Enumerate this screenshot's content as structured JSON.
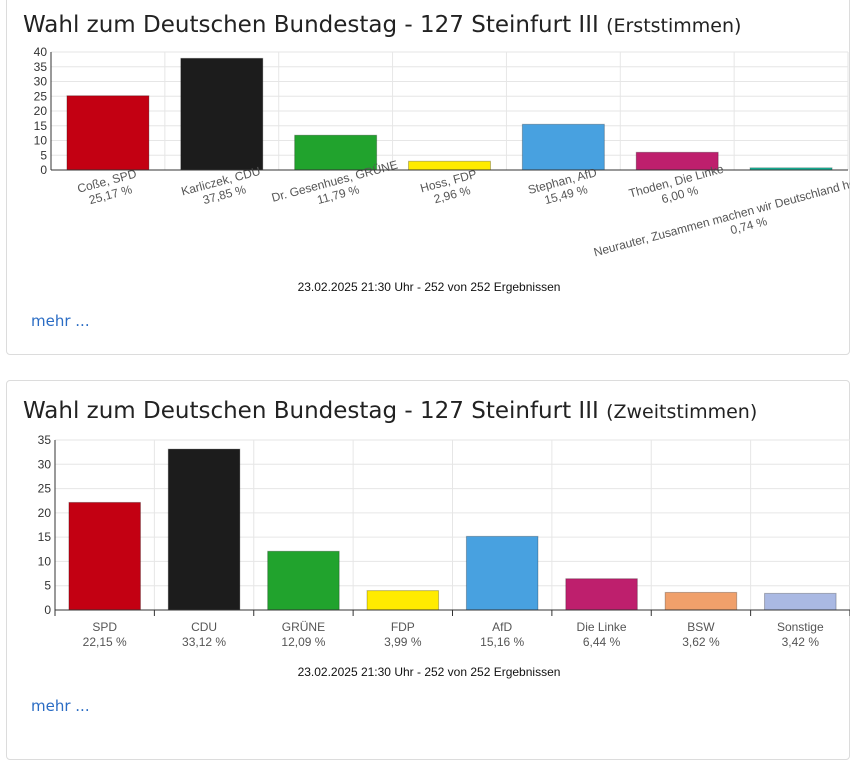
{
  "charts": [
    {
      "title": "Wahl zum Deutschen Bundestag - 127 Steinfurt III",
      "subtitle": "(Erststimmen)",
      "status": "23.02.2025 21:30 Uhr - 252 von 252 Ergebnissen",
      "more_label": "mehr ..."
    },
    {
      "title": "Wahl zum Deutschen Bundestag - 127 Steinfurt III",
      "subtitle": "(Zweitstimmen)",
      "status": "23.02.2025 21:30 Uhr - 252 von 252 Ergebnissen",
      "more_label": "mehr ..."
    }
  ],
  "chart_data": [
    {
      "type": "bar",
      "title": "Wahl zum Deutschen Bundestag - 127 Steinfurt III (Erststimmen)",
      "categories": [
        "Coße, SPD",
        "Karliczek, CDU",
        "Dr. Gesenhues, GRÜNE",
        "Hoss, FDP",
        "Stephan, AfD",
        "Thoden, Die Linke",
        "Neurauter, Zusammen machen wir Deutschland herzlicher!"
      ],
      "values": [
        25.17,
        37.85,
        11.79,
        2.96,
        15.49,
        6.0,
        0.74
      ],
      "value_labels": [
        "25,17 %",
        "37,85 %",
        "11,79 %",
        "2,96 %",
        "15,49 %",
        "6,00 %",
        "0,74 %"
      ],
      "colors": [
        "#c30012",
        "#1c1c1c",
        "#21a32d",
        "#ffeb00",
        "#48a1e0",
        "#be1f6d",
        "#17b89c"
      ],
      "ylim": [
        0,
        40
      ],
      "yticks": [
        0,
        5,
        10,
        15,
        20,
        25,
        30,
        35,
        40
      ],
      "grid": true
    },
    {
      "type": "bar",
      "title": "Wahl zum Deutschen Bundestag - 127 Steinfurt III (Zweitstimmen)",
      "categories": [
        "SPD",
        "CDU",
        "GRÜNE",
        "FDP",
        "AfD",
        "Die Linke",
        "BSW",
        "Sonstige"
      ],
      "values": [
        22.15,
        33.12,
        12.09,
        3.99,
        15.16,
        6.44,
        3.62,
        3.42
      ],
      "value_labels": [
        "22,15 %",
        "33,12 %",
        "12,09 %",
        "3,99 %",
        "15,16 %",
        "6,44 %",
        "3,62 %",
        "3,42 %"
      ],
      "colors": [
        "#c30012",
        "#1c1c1c",
        "#21a32d",
        "#ffeb00",
        "#48a1e0",
        "#be1f6d",
        "#f0a06b",
        "#aab9e3"
      ],
      "ylim": [
        0,
        35
      ],
      "yticks": [
        0,
        5,
        10,
        15,
        20,
        25,
        30,
        35
      ],
      "grid": true
    }
  ]
}
